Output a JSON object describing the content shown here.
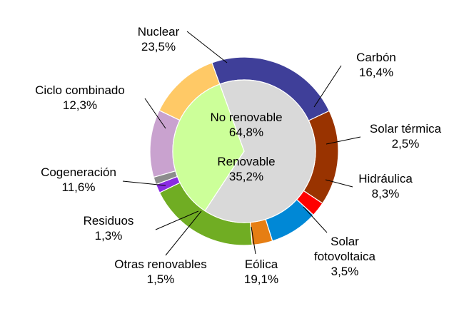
{
  "chart_data": {
    "type": "pie",
    "outer_ring": [
      {
        "label": "Nuclear",
        "value": 23.5,
        "value_label": "23,5%",
        "color": "#3f3f99"
      },
      {
        "label": "Carbón",
        "value": 16.4,
        "value_label": "16,4%",
        "color": "#993300"
      },
      {
        "label": "Solar térmica",
        "value": 2.5,
        "value_label": "2,5%",
        "color": "#ff0000"
      },
      {
        "label": "Hidráulica",
        "value": 8.3,
        "value_label": "8,3%",
        "color": "#0088d6"
      },
      {
        "label": "Solar fotovoltaica",
        "label_lines": [
          "Solar",
          "fotovoltaica"
        ],
        "value": 3.5,
        "value_label": "3,5%",
        "color": "#e67e13"
      },
      {
        "label": "Eólica",
        "value": 19.1,
        "value_label": "19,1%",
        "color": "#70ad23"
      },
      {
        "label": "Otras renovables",
        "value": 1.5,
        "value_label": "1,5%",
        "color": "#8a2be2"
      },
      {
        "label": "Residuos",
        "value": 1.3,
        "value_label": "1,3%",
        "color": "#8c8c8c"
      },
      {
        "label": "Cogeneración",
        "value": 11.6,
        "value_label": "11,6%",
        "color": "#c9a2cf"
      },
      {
        "label": "Ciclo combinado",
        "value": 12.3,
        "value_label": "12,3%",
        "color": "#ffc966"
      }
    ],
    "inner_ring": [
      {
        "label": "No renovable",
        "value": 64.8,
        "value_label": "64,8%",
        "color": "#d9d9d9"
      },
      {
        "label": "Renovable",
        "value": 35.2,
        "value_label": "35,2%",
        "color": "#ccff99"
      }
    ]
  }
}
